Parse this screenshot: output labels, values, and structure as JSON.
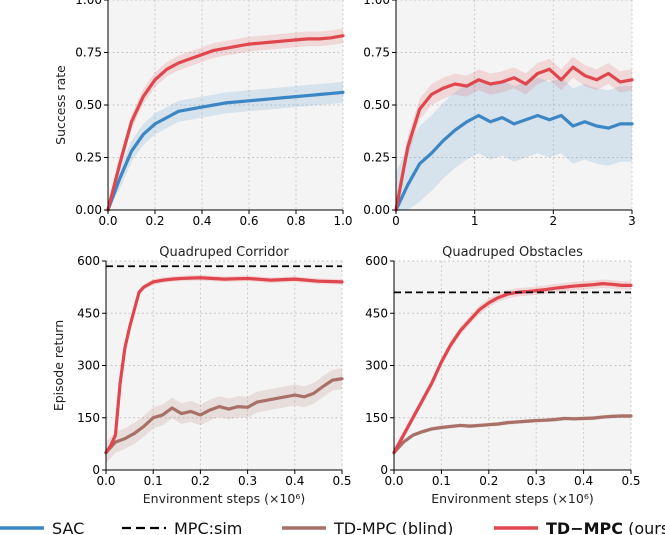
{
  "chart_data": [
    {
      "type": "line",
      "title": "",
      "xlabel": "",
      "ylabel": "Success rate",
      "xlim": [
        0,
        1.0
      ],
      "ylim": [
        0,
        1.0
      ],
      "xticks": [
        "0.0",
        "0.2",
        "0.4",
        "0.6",
        "0.8",
        "1.0"
      ],
      "yticks": [
        "0.00",
        "0.25",
        "0.50",
        "0.75",
        "1.00"
      ],
      "grid": true,
      "series": [
        {
          "name": "SAC",
          "color": "#3d86c4",
          "x": [
            0,
            0.05,
            0.1,
            0.15,
            0.2,
            0.25,
            0.3,
            0.35,
            0.4,
            0.45,
            0.5,
            0.55,
            0.6,
            0.65,
            0.7,
            0.75,
            0.8,
            0.85,
            0.9,
            0.95,
            1.0
          ],
          "y": [
            0,
            0.15,
            0.28,
            0.36,
            0.41,
            0.44,
            0.47,
            0.48,
            0.49,
            0.5,
            0.51,
            0.515,
            0.52,
            0.525,
            0.53,
            0.535,
            0.54,
            0.545,
            0.55,
            0.555,
            0.56
          ],
          "band": 0.05
        },
        {
          "name": "TD-MPC (ours)",
          "color": "#e0464d",
          "x": [
            0,
            0.05,
            0.1,
            0.15,
            0.2,
            0.25,
            0.3,
            0.35,
            0.4,
            0.45,
            0.5,
            0.55,
            0.6,
            0.65,
            0.7,
            0.75,
            0.8,
            0.85,
            0.9,
            0.95,
            1.0
          ],
          "y": [
            0,
            0.22,
            0.42,
            0.54,
            0.62,
            0.67,
            0.7,
            0.72,
            0.74,
            0.76,
            0.77,
            0.78,
            0.79,
            0.795,
            0.8,
            0.805,
            0.81,
            0.815,
            0.815,
            0.82,
            0.83
          ],
          "band": 0.035
        }
      ]
    },
    {
      "type": "line",
      "title": "",
      "xlabel": "",
      "ylabel": "",
      "xlim": [
        0,
        3
      ],
      "ylim": [
        0,
        1.0
      ],
      "xticks": [
        "0",
        "1",
        "2",
        "3"
      ],
      "yticks": [
        "0.00",
        "0.25",
        "0.50",
        "0.75",
        "1.00"
      ],
      "grid": true,
      "series": [
        {
          "name": "SAC",
          "color": "#3d86c4",
          "x": [
            0,
            0.15,
            0.3,
            0.45,
            0.6,
            0.75,
            0.9,
            1.05,
            1.2,
            1.35,
            1.5,
            1.65,
            1.8,
            1.95,
            2.1,
            2.25,
            2.4,
            2.55,
            2.7,
            2.85,
            3.0
          ],
          "y": [
            0,
            0.12,
            0.22,
            0.27,
            0.33,
            0.38,
            0.42,
            0.45,
            0.42,
            0.44,
            0.41,
            0.43,
            0.45,
            0.43,
            0.45,
            0.4,
            0.42,
            0.4,
            0.39,
            0.41,
            0.41
          ],
          "band": 0.18
        },
        {
          "name": "TD-MPC (ours)",
          "color": "#e0464d",
          "x": [
            0,
            0.15,
            0.3,
            0.45,
            0.6,
            0.75,
            0.9,
            1.05,
            1.2,
            1.35,
            1.5,
            1.65,
            1.8,
            1.95,
            2.1,
            2.25,
            2.4,
            2.55,
            2.7,
            2.85,
            3.0
          ],
          "y": [
            0,
            0.3,
            0.48,
            0.55,
            0.58,
            0.6,
            0.59,
            0.62,
            0.6,
            0.61,
            0.63,
            0.6,
            0.65,
            0.67,
            0.62,
            0.68,
            0.64,
            0.62,
            0.65,
            0.61,
            0.62
          ],
          "band": 0.05
        }
      ]
    },
    {
      "type": "line",
      "title": "Quadruped Corridor",
      "xlabel": "Environment steps (×10⁶)",
      "ylabel": "Episode return",
      "xlim": [
        0,
        0.5
      ],
      "ylim": [
        0,
        600
      ],
      "xticks": [
        "0.0",
        "0.1",
        "0.2",
        "0.3",
        "0.4",
        "0.5"
      ],
      "yticks": [
        "0",
        "150",
        "300",
        "450",
        "600"
      ],
      "grid": true,
      "reference": {
        "name": "MPC:sim",
        "y": 585
      },
      "series": [
        {
          "name": "TD-MPC (blind)",
          "color": "#a87066",
          "x": [
            0,
            0.02,
            0.04,
            0.06,
            0.08,
            0.1,
            0.12,
            0.14,
            0.16,
            0.18,
            0.2,
            0.22,
            0.24,
            0.26,
            0.28,
            0.3,
            0.32,
            0.34,
            0.36,
            0.38,
            0.4,
            0.42,
            0.44,
            0.46,
            0.48,
            0.5
          ],
          "y": [
            50,
            80,
            90,
            105,
            125,
            150,
            158,
            178,
            162,
            168,
            158,
            172,
            182,
            175,
            182,
            180,
            195,
            200,
            205,
            210,
            215,
            210,
            220,
            240,
            258,
            262
          ],
          "band": 30
        },
        {
          "name": "TD-MPC (ours)",
          "color": "#e0464d",
          "x": [
            0,
            0.01,
            0.02,
            0.03,
            0.04,
            0.05,
            0.06,
            0.07,
            0.08,
            0.1,
            0.12,
            0.14,
            0.16,
            0.2,
            0.25,
            0.3,
            0.35,
            0.4,
            0.45,
            0.5
          ],
          "y": [
            50,
            70,
            100,
            250,
            350,
            410,
            460,
            510,
            525,
            540,
            545,
            548,
            550,
            552,
            548,
            550,
            545,
            548,
            542,
            540
          ],
          "band": 8
        }
      ]
    },
    {
      "type": "line",
      "title": "Quadruped Obstacles",
      "xlabel": "Environment steps (×10⁶)",
      "ylabel": "",
      "xlim": [
        0,
        0.5
      ],
      "ylim": [
        0,
        600
      ],
      "xticks": [
        "0.0",
        "0.1",
        "0.2",
        "0.3",
        "0.4",
        "0.5"
      ],
      "yticks": [
        "0",
        "150",
        "300",
        "450",
        "600"
      ],
      "grid": true,
      "reference": {
        "name": "MPC:sim",
        "y": 510
      },
      "series": [
        {
          "name": "TD-MPC (blind)",
          "color": "#a87066",
          "x": [
            0,
            0.02,
            0.04,
            0.06,
            0.08,
            0.1,
            0.12,
            0.14,
            0.16,
            0.18,
            0.2,
            0.22,
            0.24,
            0.26,
            0.28,
            0.3,
            0.32,
            0.34,
            0.36,
            0.38,
            0.4,
            0.42,
            0.44,
            0.46,
            0.48,
            0.5
          ],
          "y": [
            50,
            80,
            100,
            110,
            118,
            122,
            125,
            128,
            126,
            128,
            130,
            132,
            136,
            138,
            140,
            142,
            143,
            145,
            148,
            147,
            148,
            149,
            152,
            154,
            155,
            155
          ],
          "band": 6
        },
        {
          "name": "TD-MPC (ours)",
          "color": "#e0464d",
          "x": [
            0,
            0.02,
            0.04,
            0.06,
            0.08,
            0.1,
            0.12,
            0.14,
            0.16,
            0.18,
            0.2,
            0.22,
            0.24,
            0.26,
            0.28,
            0.3,
            0.32,
            0.34,
            0.36,
            0.38,
            0.4,
            0.42,
            0.44,
            0.46,
            0.48,
            0.5
          ],
          "y": [
            50,
            100,
            150,
            200,
            250,
            310,
            360,
            400,
            430,
            460,
            480,
            495,
            505,
            510,
            512,
            515,
            518,
            522,
            525,
            528,
            530,
            532,
            535,
            533,
            530,
            530
          ],
          "band": 12
        }
      ]
    }
  ],
  "legend": {
    "placement": "bottom",
    "entries": [
      {
        "label": "SAC",
        "color": "#3d86c4",
        "style": "solid",
        "bold": false
      },
      {
        "label": "MPC:sim",
        "color": "#000000",
        "style": "dashed",
        "bold": false
      },
      {
        "label": "TD-MPC (blind)",
        "color": "#a87066",
        "style": "solid",
        "bold": false
      },
      {
        "label": "TD−MPC",
        "suffix": " (ours)",
        "color": "#e0464d",
        "style": "solid",
        "bold": true
      }
    ]
  }
}
